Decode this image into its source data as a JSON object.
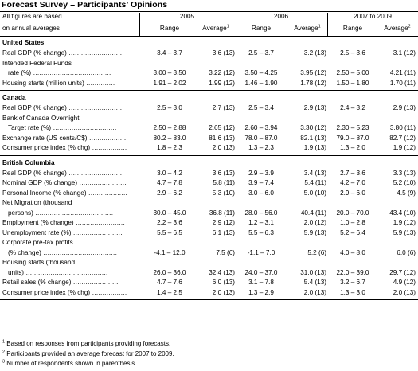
{
  "title": "Forecast Survey – Participants’ Opinions",
  "header": {
    "note_line1": "All figures are based",
    "note_line2": "on annual averages",
    "periods": [
      "2005",
      "2006",
      "2007 to 2009"
    ],
    "col_range": "Range",
    "col_average": "Average",
    "avg_sup": [
      "1",
      "1",
      "2"
    ]
  },
  "sections": [
    {
      "name": "United States",
      "rows": [
        {
          "label": "Real GDP (% change)",
          "cont": "",
          "v": [
            "3.4 – 3.7",
            "3.6 (13)",
            "2.5 – 3.7",
            "3.2 (13)",
            "2.5 – 3.6",
            "3.1 (12)"
          ]
        },
        {
          "label": "Intended Federal Funds",
          "cont": "rate (%)",
          "v": [
            "3.00 – 3.50",
            "3.22 (12)",
            "3.50 – 4.25",
            "3.95 (12)",
            "2.50 – 5.00",
            "4.21 (11)"
          ]
        },
        {
          "label": "Housing starts (million units)",
          "cont": "",
          "v": [
            "1.91 – 2.02",
            "1.99 (12)",
            "1.46 – 1.90",
            "1.78 (12)",
            "1.50 – 1.80",
            "1.70 (11)"
          ]
        }
      ]
    },
    {
      "name": "Canada",
      "rows": [
        {
          "label": "Real GDP (% change)",
          "cont": "",
          "v": [
            "2.5 – 3.0",
            "2.7 (13)",
            "2.5 – 3.4",
            "2.9 (13)",
            "2.4 – 3.2",
            "2.9 (13)"
          ]
        },
        {
          "label": "Bank of Canada Overnight",
          "cont": "Target rate (%)",
          "v": [
            "2.50 – 2.88",
            "2.65 (12)",
            "2.60 – 3.94",
            "3.30 (12)",
            "2.30 – 5.23",
            "3.80 (11)"
          ]
        },
        {
          "label": "Exchange rate (US cents/C$)",
          "cont": "",
          "v": [
            "80.2 – 83.0",
            "81.6 (13)",
            "78.0 – 87.0",
            "82.1 (13)",
            "79.0 – 87.0",
            "82.7 (12)"
          ]
        },
        {
          "label": "Consumer price index (% chg)",
          "cont": "",
          "v": [
            "1.8 – 2.3",
            "2.0 (13)",
            "1.3 – 2.3",
            "1.9 (13)",
            "1.3 – 2.0",
            "1.9 (12)"
          ]
        }
      ]
    },
    {
      "name": "British Columbia",
      "rows": [
        {
          "label": "Real GDP (% change)",
          "cont": "",
          "v": [
            "3.0 – 4.2",
            "3.6 (13)",
            "2.9 – 3.9",
            "3.4 (13)",
            "2.7 – 3.6",
            "3.3 (13)"
          ]
        },
        {
          "label": "Nominal GDP (% change)",
          "cont": "",
          "v": [
            "4.7 – 7.8",
            "5.8 (11)",
            "3.9 – 7.4",
            "5.4 (11)",
            "4.2 – 7.0",
            "5.2 (10)"
          ]
        },
        {
          "label": "Personal Income (% change)",
          "cont": "",
          "v": [
            "2.9 – 6.2",
            "5.3 (10)",
            "3.0 – 6.0",
            "5.0 (10)",
            "2.9 – 6.0",
            "4.5 (9)"
          ]
        },
        {
          "label": "Net Migration (thousand",
          "cont": "persons)",
          "v": [
            "30.0 – 45.0",
            "36.8 (11)",
            "28.0 – 56.0",
            "40.4 (11)",
            "20.0 – 70.0",
            "43.4 (10)"
          ]
        },
        {
          "label": "Employment (% change)",
          "cont": "",
          "v": [
            "2.2 – 3.6",
            "2.9 (12)",
            "1.2 – 3.1",
            "2.0 (12)",
            "1.0 – 2.8",
            "1.9 (12)"
          ]
        },
        {
          "label": "Unemployment rate (%)",
          "cont": "",
          "v": [
            "5.5 – 6.5",
            "6.1 (13)",
            "5.5 – 6.3",
            "5.9 (13)",
            "5.2 – 6.4",
            "5.9 (13)"
          ]
        },
        {
          "label": "Corporate pre-tax profits",
          "cont": "(% change)",
          "v": [
            "-4.1 – 12.0",
            "7.5 (6)",
            "-1.1 – 7.0",
            "5.2 (6)",
            "4.0 – 8.0",
            "6.0 (6)"
          ]
        },
        {
          "label": "Housing starts (thousand",
          "cont": "units)",
          "v": [
            "26.0 – 36.0",
            "32.4 (13)",
            "24.0 – 37.0",
            "31.0 (13)",
            "22.0 – 39.0",
            "29.7 (12)"
          ]
        },
        {
          "label": "Retail sales (% change)",
          "cont": "",
          "v": [
            "4.7 – 7.6",
            "6.0 (13)",
            "3.1 – 7.8",
            "5.4 (13)",
            "3.2 – 6.7",
            "4.9 (12)"
          ]
        },
        {
          "label": "Consumer price index (% chg)",
          "cont": "",
          "v": [
            "1.4 – 2.5",
            "2.0 (13)",
            "1.3 – 2.9",
            "2.0 (13)",
            "1.3 – 3.0",
            "2.0 (13)"
          ]
        }
      ]
    }
  ],
  "footnotes": [
    {
      "mark": "1",
      "text": "Based on responses from participants providing forecasts."
    },
    {
      "mark": "2",
      "text": "Participants provided an average forecast for 2007 to 2009."
    },
    {
      "mark": "3",
      "text": "Number of respondents shown in parenthesis."
    }
  ]
}
